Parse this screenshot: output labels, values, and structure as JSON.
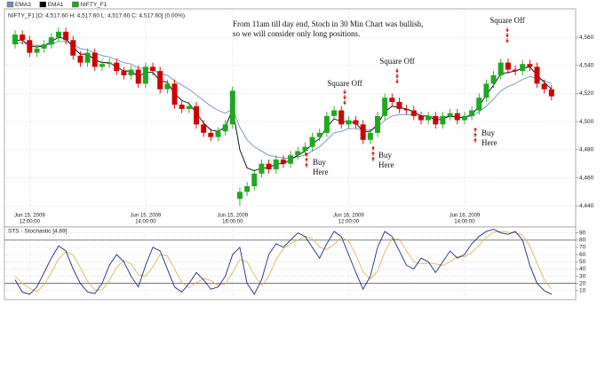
{
  "chart_data": [
    {
      "type": "candlestick",
      "title": "NIFTY_F1 [O: 4,517.60  H: 4,517.60  L: 4,517.60  C: 4,517.60] (0.00%)",
      "categories": [
        null,
        null,
        [
          "Jun 15, 2009",
          "12:00:00"
        ],
        null,
        null,
        null,
        null,
        null,
        null,
        null,
        null,
        null,
        null,
        null,
        null,
        null,
        null,
        null,
        [
          "Jun 15, 2009",
          "14:00:00"
        ],
        null,
        null,
        null,
        null,
        null,
        null,
        null,
        null,
        null,
        null,
        null,
        [
          "Jun 15, 2009",
          "16:00:00"
        ],
        null,
        null,
        null,
        null,
        null,
        null,
        null,
        null,
        null,
        null,
        null,
        null,
        null,
        null,
        null,
        [
          "Jun 16, 2009",
          "12:00:00"
        ],
        null,
        null,
        null,
        null,
        null,
        null,
        null,
        null,
        null,
        null,
        null,
        null,
        null,
        null,
        null,
        [
          "Jun 16, 2009",
          "14:00:00"
        ],
        null,
        null,
        null,
        null,
        null,
        null,
        null,
        null,
        null,
        null,
        null,
        null
      ],
      "series": [
        {
          "name": "EMA3",
          "color": "#6f8fbd",
          "values": [
            4556,
            4556,
            4555,
            4554,
            4554,
            4555,
            4557,
            4557,
            4555,
            4552,
            4551,
            4549,
            4547,
            4546,
            4544,
            4542,
            4541,
            4538,
            4538,
            4537,
            4534,
            4533,
            4529,
            4526,
            4523,
            4519,
            4515,
            4511,
            4508,
            4506,
            4509,
            4496,
            4487,
            4482,
            4479,
            4476,
            4475,
            4474,
            4474,
            4475,
            4476,
            4479,
            4482,
            4487,
            4492,
            4493,
            4495,
            4495,
            4494,
            4494,
            4496,
            4501,
            4504,
            4505,
            4505,
            4505,
            4504,
            4504,
            4503,
            4503,
            4504,
            4503,
            4503,
            4504,
            4507,
            4511,
            4516,
            4522,
            4525,
            4527,
            4530,
            4532,
            4531,
            4529,
            4527
          ]
        },
        {
          "name": "EMA1",
          "color": "#000000",
          "values": [
            4558,
            4558,
            4554,
            4553,
            4554,
            4557,
            4560,
            4559,
            4553,
            4548,
            4548,
            4544,
            4542,
            4542,
            4539,
            4536,
            4536,
            4532,
            4535,
            4535,
            4529,
            4528,
            4520,
            4515,
            4513,
            4506,
            4499,
            4494,
            4493,
            4496,
            4509,
            4480,
            4467,
            4465,
            4467,
            4467,
            4470,
            4470,
            4473,
            4476,
            4479,
            4484,
            4488,
            4496,
            4502,
            4500,
            4500,
            4499,
            4493,
            4493,
            4498,
            4507,
            4511,
            4510,
            4509,
            4507,
            4504,
            4504,
            4501,
            4502,
            4504,
            4503,
            4503,
            4505,
            4511,
            4519,
            4526,
            4534,
            4535,
            4536,
            4538,
            4539,
            4533,
            4528,
            4523
          ]
        },
        {
          "name": "NIFTY_F1",
          "color": "#1fa81f",
          "down_color": "#d10000",
          "open": [
            4555,
            4562,
            4558,
            4549,
            4552,
            4555,
            4560,
            4564,
            4558,
            4547,
            4542,
            4549,
            4539,
            4541,
            4542,
            4536,
            4533,
            4537,
            4527,
            4539,
            4536,
            4523,
            4527,
            4512,
            4509,
            4511,
            4498,
            4492,
            4489,
            4493,
            4498,
            4445,
            4450,
            4454,
            4463,
            4470,
            4466,
            4473,
            4470,
            4476,
            4479,
            4482,
            4489,
            4492,
            4504,
            4508,
            4498,
            4501,
            4498,
            4487,
            4492,
            4504,
            4517,
            4514,
            4509,
            4508,
            4504,
            4501,
            4504,
            4498,
            4504,
            4506,
            4501,
            4504,
            4508,
            4517,
            4527,
            4533,
            4542,
            4537,
            4536,
            4541,
            4539,
            4527,
            4523
          ],
          "high": [
            4565,
            4565,
            4561,
            4555,
            4558,
            4563,
            4567,
            4567,
            4561,
            4550,
            4552,
            4552,
            4544,
            4545,
            4545,
            4539,
            4540,
            4540,
            4542,
            4542,
            4539,
            4530,
            4530,
            4515,
            4514,
            4514,
            4501,
            4495,
            4496,
            4501,
            4525,
            4453,
            4457,
            4466,
            4473,
            4473,
            4476,
            4476,
            4479,
            4482,
            4485,
            4492,
            4495,
            4507,
            4511,
            4511,
            4504,
            4504,
            4501,
            4495,
            4507,
            4520,
            4520,
            4517,
            4512,
            4511,
            4507,
            4507,
            4507,
            4507,
            4509,
            4509,
            4507,
            4511,
            4520,
            4530,
            4536,
            4545,
            4545,
            4540,
            4544,
            4544,
            4542,
            4530,
            4526
          ],
          "low": [
            4552,
            4555,
            4546,
            4546,
            4549,
            4552,
            4557,
            4555,
            4544,
            4539,
            4539,
            4536,
            4536,
            4538,
            4533,
            4530,
            4530,
            4524,
            4524,
            4533,
            4520,
            4520,
            4509,
            4506,
            4506,
            4495,
            4489,
            4486,
            4486,
            4490,
            4495,
            4440,
            4447,
            4451,
            4460,
            4463,
            4463,
            4467,
            4467,
            4473,
            4476,
            4479,
            4486,
            4489,
            4501,
            4495,
            4495,
            4495,
            4484,
            4484,
            4489,
            4501,
            4511,
            4506,
            4505,
            4501,
            4498,
            4498,
            4495,
            4495,
            4501,
            4498,
            4498,
            4501,
            4505,
            4514,
            4524,
            4530,
            4534,
            4533,
            4533,
            4536,
            4524,
            4520,
            4515
          ],
          "close": [
            4562,
            4558,
            4549,
            4552,
            4555,
            4560,
            4564,
            4558,
            4547,
            4542,
            4549,
            4539,
            4541,
            4542,
            4536,
            4533,
            4537,
            4527,
            4539,
            4536,
            4523,
            4527,
            4512,
            4509,
            4511,
            4498,
            4492,
            4489,
            4493,
            4498,
            4522,
            4450,
            4454,
            4463,
            4470,
            4466,
            4473,
            4470,
            4476,
            4479,
            4482,
            4489,
            4492,
            4504,
            4508,
            4498,
            4501,
            4498,
            4487,
            4492,
            4504,
            4517,
            4514,
            4509,
            4508,
            4504,
            4501,
            4504,
            4498,
            4504,
            4506,
            4501,
            4504,
            4508,
            4517,
            4527,
            4533,
            4542,
            4537,
            4536,
            4541,
            4539,
            4527,
            4523,
            4518
          ]
        }
      ],
      "ylim": [
        4437,
        4579
      ],
      "yticks": [
        {
          "value": 4440,
          "label": "4,440"
        },
        {
          "value": 4460,
          "label": "4,460"
        },
        {
          "value": 4480,
          "label": "4,480"
        },
        {
          "value": 4500,
          "label": "4,500"
        },
        {
          "value": 4520,
          "label": "4,520"
        },
        {
          "value": 4540,
          "label": "4,540"
        },
        {
          "value": 4560,
          "label": "4,560"
        }
      ],
      "grid": true,
      "annotations": [
        "From 11am till day end, Stoch in 30 Min Chart was bullish,\nso we will consider only long positions.",
        "Square Off",
        "Square Off",
        "Square Off",
        "Buy\nHere",
        "Buy\nHere",
        "Buy\nHere"
      ]
    },
    {
      "type": "line",
      "title": "STS - Stochastic [4,69]",
      "series": [
        {
          "color": "#1c2a80",
          "values": [
            25,
            8,
            5,
            15,
            35,
            55,
            72,
            65,
            40,
            20,
            8,
            6,
            20,
            45,
            60,
            50,
            30,
            15,
            45,
            70,
            65,
            40,
            15,
            8,
            20,
            35,
            25,
            12,
            15,
            30,
            60,
            70,
            20,
            5,
            25,
            60,
            75,
            70,
            80,
            90,
            85,
            70,
            55,
            75,
            92,
            85,
            60,
            35,
            12,
            30,
            70,
            92,
            85,
            65,
            45,
            40,
            55,
            50,
            35,
            50,
            65,
            55,
            60,
            75,
            85,
            92,
            95,
            90,
            88,
            92,
            80,
            45,
            20,
            10,
            5
          ]
        },
        {
          "color": "#e3b25a",
          "values": [
            30,
            20,
            13,
            9,
            18,
            35,
            54,
            64,
            59,
            42,
            23,
            11,
            11,
            24,
            42,
            52,
            47,
            32,
            30,
            43,
            60,
            58,
            40,
            21,
            14,
            21,
            27,
            24,
            17,
            19,
            35,
            53,
            50,
            32,
            17,
            30,
            53,
            68,
            75,
            80,
            85,
            82,
            70,
            67,
            74,
            84,
            79,
            60,
            36,
            26,
            37,
            64,
            82,
            81,
            65,
            50,
            47,
            48,
            47,
            45,
            50,
            57,
            57,
            63,
            73,
            84,
            91,
            92,
            91,
            90,
            87,
            72,
            48,
            25,
            12
          ]
        }
      ],
      "levels": [
        20,
        80
      ],
      "ylim": [
        0,
        97
      ],
      "yticks": [
        10,
        20,
        30,
        40,
        50,
        60,
        70,
        80,
        90
      ],
      "grid": true
    }
  ]
}
